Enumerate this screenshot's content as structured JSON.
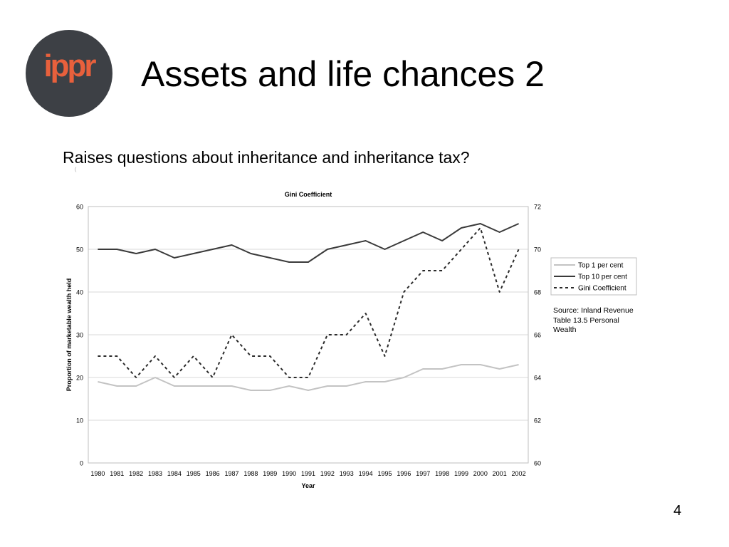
{
  "slide": {
    "logo_text": "ippr",
    "title": "Assets and life chances 2",
    "subtitle": "Raises questions about inheritance and inheritance tax?",
    "page_number": "4",
    "tiny_mark": "("
  },
  "source_note": [
    "Source: Inland Revenue",
    "Table 13.5 Personal Wealth"
  ],
  "colors": {
    "top1": "#c3c3c3",
    "top10": "#3a3a3a",
    "gini": "#2a2a2a",
    "grid": "#d9d9d9",
    "logo_bg": "#3d4045",
    "logo_text": "#e8603c"
  },
  "chart_data": {
    "type": "line",
    "title": "Gini Coefficient",
    "xlabel": "Year",
    "ylabel": "Proportion of marketable wealth held",
    "y2label": "",
    "categories": [
      "1980",
      "1981",
      "1982",
      "1983",
      "1984",
      "1985",
      "1986",
      "1987",
      "1988",
      "1989",
      "1990",
      "1991",
      "1992",
      "1993",
      "1994",
      "1995",
      "1996",
      "1997",
      "1998",
      "1999",
      "2000",
      "2001",
      "2002"
    ],
    "ylim": [
      0,
      60
    ],
    "y_ticks": [
      0,
      10,
      20,
      30,
      40,
      50,
      60
    ],
    "y2lim": [
      60,
      72
    ],
    "y2_ticks": [
      60,
      62,
      64,
      66,
      68,
      70,
      72
    ],
    "grid": true,
    "legend_position": "right",
    "series": [
      {
        "name": "Top 1 per cent",
        "axis": "left",
        "style": "solid",
        "values": [
          19,
          18,
          18,
          20,
          18,
          18,
          18,
          18,
          17,
          17,
          18,
          17,
          18,
          18,
          19,
          19,
          20,
          22,
          22,
          23,
          23,
          22,
          23
        ]
      },
      {
        "name": "Top 10 per cent",
        "axis": "left",
        "style": "solid",
        "values": [
          50,
          50,
          49,
          50,
          48,
          49,
          50,
          51,
          49,
          48,
          47,
          47,
          50,
          51,
          52,
          50,
          52,
          54,
          52,
          55,
          56,
          54,
          56
        ]
      },
      {
        "name": "Gini Coefficient",
        "axis": "right",
        "style": "dashed",
        "values": [
          65,
          65,
          64,
          65,
          64,
          65,
          64,
          66,
          65,
          65,
          64,
          64,
          66,
          66,
          67,
          65,
          68,
          69,
          69,
          70,
          71,
          68,
          70
        ]
      }
    ]
  }
}
